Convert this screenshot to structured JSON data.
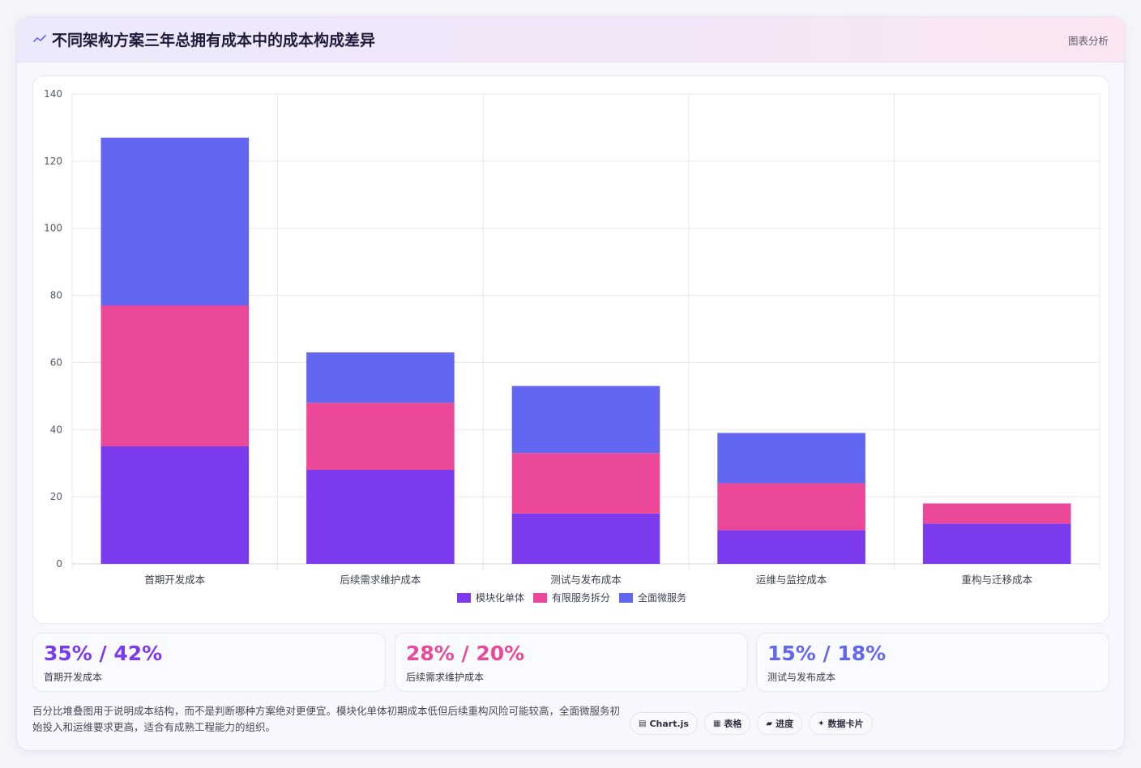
{
  "header": {
    "title": "不同架构方案三年总拥有成本中的成本构成差异",
    "tag": "图表分析",
    "icon": "sparkline-icon"
  },
  "chart_data": {
    "type": "bar",
    "stacked": true,
    "categories": [
      "首期开发成本",
      "后续需求维护成本",
      "测试与发布成本",
      "运维与监控成本",
      "重构与迁移成本"
    ],
    "series": [
      {
        "name": "模块化单体",
        "color": "#7c3aed",
        "values": [
          35,
          28,
          15,
          10,
          12
        ]
      },
      {
        "name": "有限服务拆分",
        "color": "#ec4899",
        "values": [
          42,
          20,
          18,
          14,
          6
        ]
      },
      {
        "name": "全面微服务",
        "color": "#6366f1",
        "values": [
          50,
          15,
          20,
          15,
          0
        ]
      }
    ],
    "ylim": [
      0,
      140
    ],
    "yticks": [
      0,
      20,
      40,
      60,
      80,
      100,
      120,
      140
    ],
    "grid": true,
    "legend_position": "bottom"
  },
  "stats": [
    {
      "value": "35% / 42%",
      "label": "首期开发成本",
      "color": "#7c3aed"
    },
    {
      "value": "28% / 20%",
      "label": "后续需求维护成本",
      "color": "#ec4899"
    },
    {
      "value": "15% / 18%",
      "label": "测试与发布成本",
      "color": "#6366f1"
    }
  ],
  "footnote": "百分比堆叠图用于说明成本结构，而不是判断哪种方案绝对更便宜。模块化单体初期成本低但后续重构风险可能较高，全面微服务初始投入和运维要求更高，适合有成熟工程能力的组织。",
  "pills": [
    {
      "icon": "▤",
      "icon_name": "chart-icon",
      "label": "Chart.js"
    },
    {
      "icon": "▦",
      "icon_name": "table-icon",
      "label": "表格"
    },
    {
      "icon": "▰",
      "icon_name": "progress-icon",
      "label": "进度"
    },
    {
      "icon": "✦",
      "icon_name": "card-icon",
      "label": "数据卡片"
    }
  ]
}
